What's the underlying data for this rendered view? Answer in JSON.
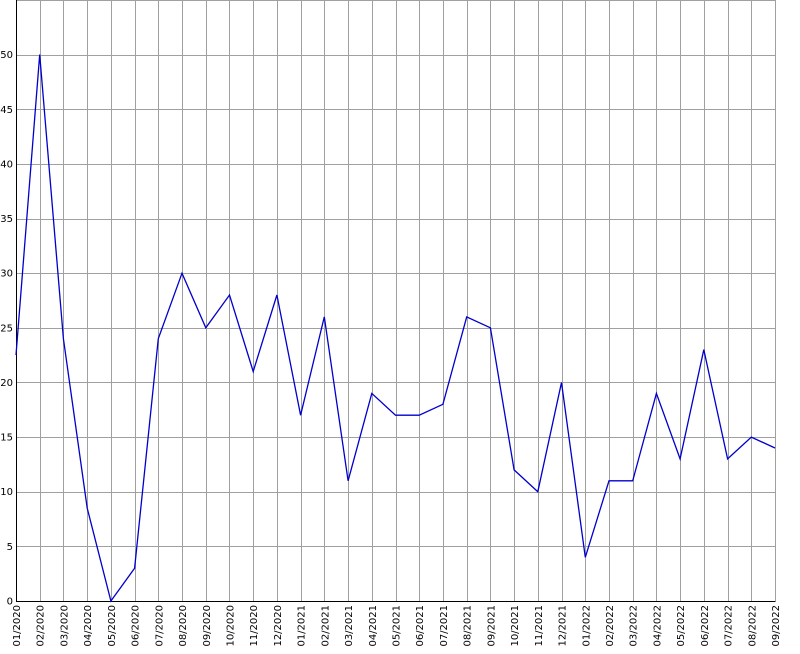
{
  "chart_data": {
    "type": "line",
    "title": "",
    "xlabel": "",
    "ylabel": "",
    "categories": [
      "01/2020",
      "02/2020",
      "03/2020",
      "04/2020",
      "05/2020",
      "06/2020",
      "07/2020",
      "08/2020",
      "09/2020",
      "10/2020",
      "11/2020",
      "12/2020",
      "01/2021",
      "02/2021",
      "03/2021",
      "04/2021",
      "05/2021",
      "06/2021",
      "07/2021",
      "08/2021",
      "09/2021",
      "10/2021",
      "11/2021",
      "12/2021",
      "01/2022",
      "02/2022",
      "03/2022",
      "04/2022",
      "05/2022",
      "06/2022",
      "07/2022",
      "08/2022",
      "09/2022"
    ],
    "series": [
      {
        "values": [
          22.5,
          50,
          24,
          8.5,
          0,
          3,
          24,
          30,
          25,
          28,
          21,
          28,
          17,
          26,
          11,
          19,
          17,
          17,
          18,
          26,
          25,
          12,
          10,
          20,
          4,
          11,
          11,
          19,
          13,
          23,
          13,
          15,
          14
        ],
        "color": "#0000cc"
      }
    ],
    "ylim": [
      0,
      55
    ],
    "yticks": [
      0,
      5,
      10,
      15,
      20,
      25,
      30,
      35,
      40,
      45,
      50
    ],
    "grid": true,
    "legend": "none",
    "colors": {
      "grid": "#a0a0a0",
      "axis": "#000000",
      "background": "#ffffff"
    }
  }
}
